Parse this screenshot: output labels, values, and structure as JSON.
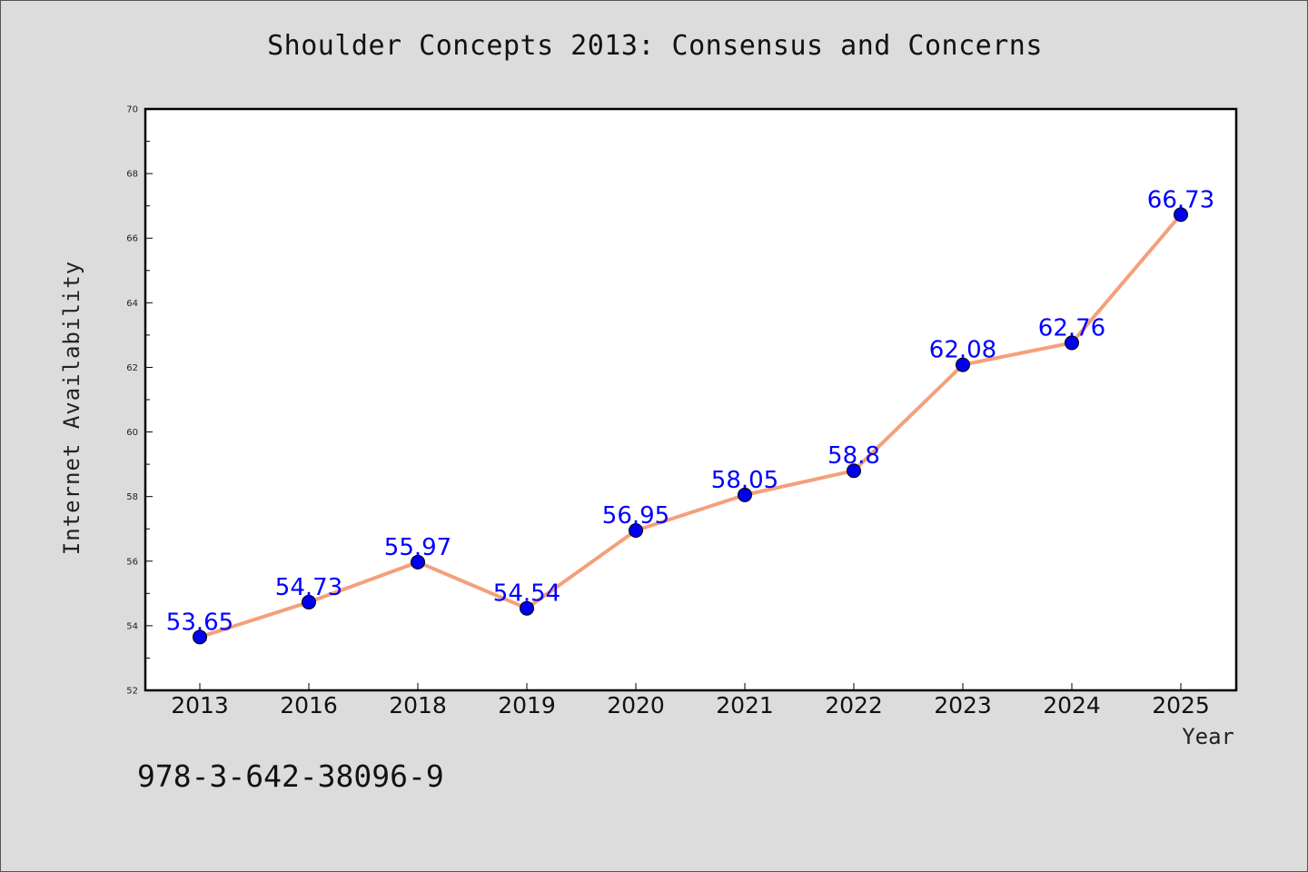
{
  "chart_data": {
    "type": "line",
    "title": "Shoulder Concepts 2013: Consensus and Concerns",
    "xlabel": "Year",
    "ylabel": "Internet Availability",
    "categories": [
      "2013",
      "2016",
      "2018",
      "2019",
      "2020",
      "2021",
      "2022",
      "2023",
      "2024",
      "2025"
    ],
    "series": [
      {
        "values": [
          53.65,
          54.73,
          55.97,
          54.54,
          56.95,
          58.05,
          58.8,
          62.08,
          62.76,
          66.73
        ],
        "data_labels": [
          "53.65",
          "54.73",
          "55.97",
          "54.54",
          "56.95",
          "58.05",
          "58.8",
          "62.08",
          "62.76",
          "66.73"
        ],
        "line_color": "#f4a07a",
        "marker_color": "#0000ee"
      }
    ],
    "ylim": [
      52,
      70
    ],
    "yticks": [
      "52",
      "54",
      "56",
      "58",
      "60",
      "62",
      "64",
      "66",
      "68",
      "70"
    ],
    "grid": false,
    "legend": "none"
  },
  "footer": {
    "isbn": "978-3-642-38096-9"
  },
  "colors": {
    "background": "#dcdcdc",
    "plot_background": "#ffffff",
    "label_color": "#0000ff"
  }
}
